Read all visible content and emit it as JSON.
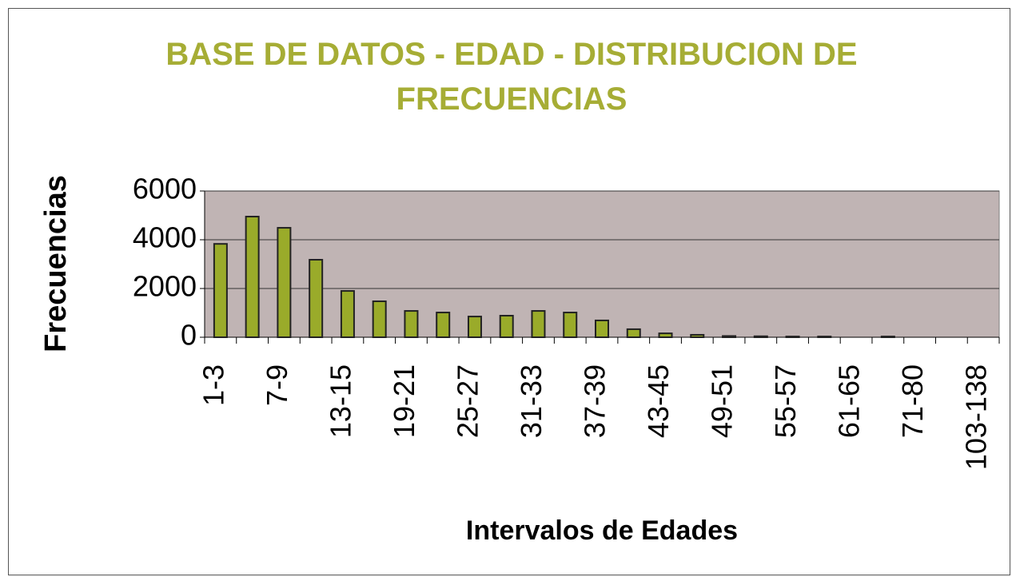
{
  "chart_data": {
    "type": "bar",
    "title": "BASE DE DATOS - EDAD - DISTRIBUCION DE FRECUENCIAS",
    "x_label": "Intervalos de Edades",
    "y_label": "Frecuencias",
    "categories": [
      "1-3",
      null,
      "7-9",
      null,
      "13-15",
      null,
      "19-21",
      null,
      "25-27",
      null,
      "31-33",
      null,
      "37-39",
      null,
      "43-45",
      null,
      "49-51",
      null,
      "55-57",
      null,
      "61-65",
      null,
      "71-80",
      null,
      "103-138"
    ],
    "values": [
      3830,
      4950,
      4490,
      3180,
      1900,
      1475,
      1080,
      1015,
      850,
      885,
      1080,
      1015,
      690,
      330,
      160,
      100,
      50,
      40,
      30,
      30,
      0,
      30,
      0,
      0,
      0
    ],
    "color": "#9aab2a",
    "ylim": [
      0,
      6000
    ],
    "yticks": [
      0,
      2000,
      4000,
      6000
    ],
    "grid": true
  }
}
